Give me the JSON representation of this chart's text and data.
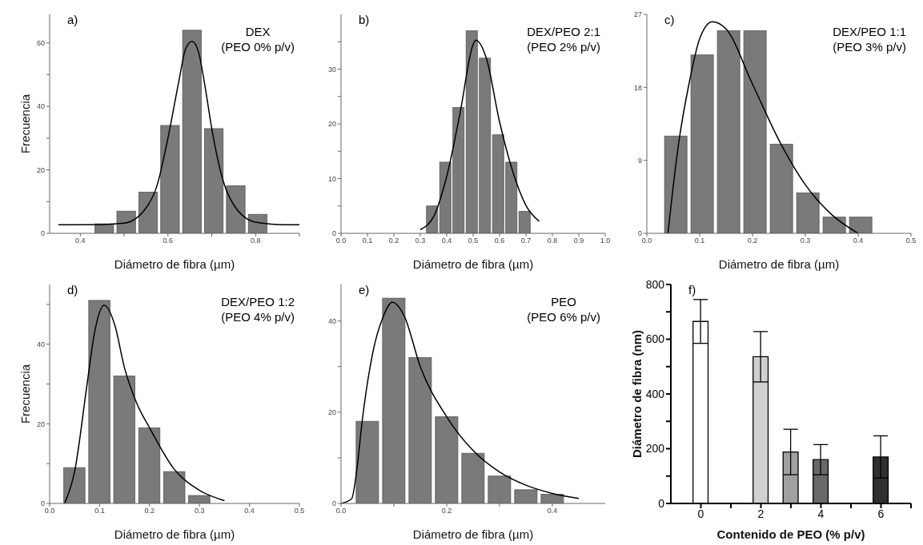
{
  "chart_data": [
    {
      "type": "histogram",
      "xlabel": "Diámetro de fibra (µm)",
      "ylabel": "Frecuencia",
      "annotations": [
        "a)",
        "DEX",
        "(PEO 0% p/v)"
      ],
      "xlim": [
        0.33,
        0.9
      ],
      "xticks": [
        0.4,
        {
          "value": 0.5,
          "label": null
        },
        0.6,
        {
          "value": 0.7,
          "label": null
        },
        0.8,
        {
          "value": 0.9,
          "label": null
        }
      ],
      "ylim": [
        0,
        69
      ],
      "yticks": [
        0,
        {
          "value": 10,
          "label": null
        },
        20,
        {
          "value": 30,
          "label": null
        },
        40,
        {
          "value": 50,
          "label": null
        },
        60
      ],
      "series": [
        {
          "type": "histogram",
          "color": "#7a7a7a",
          "bins": [
            0.43,
            0.48,
            0.53,
            0.58,
            0.63,
            0.68,
            0.73,
            0.78,
            0.83
          ],
          "values": [
            3,
            7,
            13,
            34,
            64,
            33,
            15,
            6
          ]
        },
        {
          "type": "line",
          "color": "#000000",
          "x": [
            0.35,
            0.45,
            0.5,
            0.55,
            0.575,
            0.6,
            0.625,
            0.64,
            0.655,
            0.67,
            0.685,
            0.7,
            0.725,
            0.75,
            0.8,
            0.85,
            0.9
          ],
          "values": [
            2.7,
            2.8,
            3.2,
            8,
            15,
            30,
            48,
            58,
            60.5,
            57,
            46,
            33,
            17,
            9,
            3.5,
            2.8,
            2.7
          ]
        }
      ]
    },
    {
      "type": "histogram",
      "xlabel": "Diámetro de fibra (µm)",
      "annotations": [
        "b)",
        "DEX/PEO 2:1",
        "(PEO 2% p/v)"
      ],
      "xlim": [
        0,
        1
      ],
      "xticks": [
        {
          "value": 0,
          "label": "0.0"
        },
        0.1,
        0.2,
        0.3,
        0.4,
        0.5,
        0.6,
        0.7,
        0.8,
        0.9,
        {
          "value": 1,
          "label": "1.0"
        }
      ],
      "ylim": [
        0,
        40
      ],
      "yticks": [
        0,
        {
          "value": 5,
          "label": null
        },
        10,
        {
          "value": 15,
          "label": null
        },
        20,
        {
          "value": 25,
          "label": null
        },
        30,
        {
          "value": 35,
          "label": null
        }
      ],
      "series": [
        {
          "type": "histogram",
          "color": "#7a7a7a",
          "bins": [
            0.32,
            0.37,
            0.42,
            0.47,
            0.52,
            0.57,
            0.62,
            0.67,
            0.72
          ],
          "values": [
            5,
            13,
            23,
            37,
            32,
            18,
            13,
            4
          ]
        },
        {
          "type": "line",
          "color": "#000000",
          "x": [
            0.3,
            0.35,
            0.4,
            0.45,
            0.5,
            0.51,
            0.55,
            0.6,
            0.65,
            0.7,
            0.75
          ],
          "values": [
            0.7,
            3,
            10.4,
            21.8,
            34.5,
            35.3,
            32,
            20.4,
            11.3,
            5.1,
            2.2
          ]
        }
      ]
    },
    {
      "type": "histogram",
      "xlabel": "Diámetro de fibra (µm)",
      "annotations": [
        "c)",
        "DEX/PEO 1:1",
        "(PEO 3% p/v)"
      ],
      "xlim": [
        0,
        0.5
      ],
      "xticks": [
        {
          "value": 0,
          "label": "0.0"
        },
        0.1,
        0.2,
        0.3,
        0.4,
        0.5
      ],
      "ylim": [
        0,
        27
      ],
      "yticks": [
        0,
        9,
        18,
        27
      ],
      "series": [
        {
          "type": "histogram",
          "color": "#7a7a7a",
          "bins": [
            0.03,
            0.08,
            0.13,
            0.18,
            0.23,
            0.28,
            0.33,
            0.38,
            0.43
          ],
          "values": [
            12,
            22,
            25,
            25,
            11,
            5,
            2,
            2
          ]
        },
        {
          "type": "line",
          "color": "#000000",
          "x": [
            0.04,
            0.06,
            0.08,
            0.1,
            0.124,
            0.15,
            0.2,
            0.25,
            0.3,
            0.35,
            0.4
          ],
          "values": [
            0,
            11,
            18.5,
            24,
            26.1,
            25.2,
            18.4,
            11.5,
            6,
            2.3,
            0
          ]
        }
      ]
    },
    {
      "type": "histogram",
      "xlabel": "Diámetro de fibra (µm)",
      "ylabel": "Frecuencia",
      "annotations": [
        "d)",
        "DEX/PEO 1:2",
        "(PEO 4% p/v)"
      ],
      "xlim": [
        0,
        0.5
      ],
      "xticks": [
        {
          "value": 0,
          "label": "0.0"
        },
        0.1,
        0.2,
        0.3,
        0.4,
        0.5
      ],
      "ylim": [
        0,
        55
      ],
      "yticks": [
        0,
        {
          "value": 10,
          "label": null
        },
        20,
        {
          "value": 30,
          "label": null
        },
        40,
        {
          "value": 50,
          "label": null
        }
      ],
      "series": [
        {
          "type": "histogram",
          "color": "#7a7a7a",
          "bins": [
            0.025,
            0.075,
            0.125,
            0.175,
            0.225,
            0.275,
            0.325
          ],
          "values": [
            9,
            51,
            32,
            19,
            8,
            2
          ]
        },
        {
          "type": "line",
          "color": "#000000",
          "x": [
            0.03,
            0.05,
            0.075,
            0.09,
            0.109,
            0.13,
            0.15,
            0.175,
            0.2,
            0.25,
            0.3,
            0.35
          ],
          "values": [
            0,
            8,
            30,
            43,
            49.8,
            45,
            34,
            25,
            19,
            8.5,
            3.3,
            0.7
          ]
        }
      ]
    },
    {
      "type": "histogram",
      "xlabel": "Diámetro de fibra (µm)",
      "annotations": [
        "e)",
        "PEO",
        "(PEO 6% p/v)"
      ],
      "xlim": [
        0,
        0.5
      ],
      "xticks": [
        {
          "value": 0,
          "label": "0.0"
        },
        {
          "value": 0.1,
          "label": null
        },
        0.2,
        {
          "value": 0.3,
          "label": null
        },
        0.4
      ],
      "ylim": [
        0,
        48
      ],
      "yticks": [
        0,
        {
          "value": 10,
          "label": null
        },
        20,
        {
          "value": 30,
          "label": null
        },
        40
      ],
      "series": [
        {
          "type": "histogram",
          "color": "#7a7a7a",
          "bins": [
            0.025,
            0.075,
            0.125,
            0.175,
            0.225,
            0.275,
            0.325,
            0.375,
            0.425
          ],
          "values": [
            18,
            45,
            32,
            19,
            11,
            6,
            3,
            2
          ]
        },
        {
          "type": "line",
          "color": "#000000",
          "x": [
            0,
            0.02,
            0.03,
            0.04,
            0.06,
            0.08,
            0.097,
            0.12,
            0.15,
            0.2,
            0.25,
            0.3,
            0.35,
            0.4,
            0.45
          ],
          "values": [
            0,
            1,
            7.5,
            18,
            33,
            41,
            44.1,
            41,
            30,
            19,
            11.6,
            6.9,
            4,
            2.2,
            1.1
          ]
        }
      ]
    },
    {
      "type": "bar",
      "xlabel": "Contenido de PEO (% p/v)",
      "ylabel": "Diámetro de fibra (nm)",
      "annotations": [
        "f)"
      ],
      "x": [
        0,
        2,
        3,
        4,
        6
      ],
      "values": [
        665,
        536,
        188,
        160,
        170
      ],
      "errors": [
        80,
        92,
        83,
        55,
        77
      ],
      "colors": [
        "#ffffff",
        "#d0d0d0",
        "#a0a0a0",
        "#686868",
        "#303030"
      ],
      "xlim": [
        -1,
        7
      ],
      "xticks": [
        0,
        {
          "value": 1,
          "label": null
        },
        2,
        {
          "value": 3,
          "label": null
        },
        4,
        {
          "value": 5,
          "label": null
        },
        6,
        {
          "value": 7,
          "label": null
        }
      ],
      "ylim": [
        0,
        800
      ],
      "yticks": [
        0,
        {
          "value": 100,
          "label": null
        },
        200,
        {
          "value": 300,
          "label": null
        },
        400,
        {
          "value": 500,
          "label": null
        },
        600,
        {
          "value": 700,
          "label": null
        },
        800
      ]
    }
  ]
}
